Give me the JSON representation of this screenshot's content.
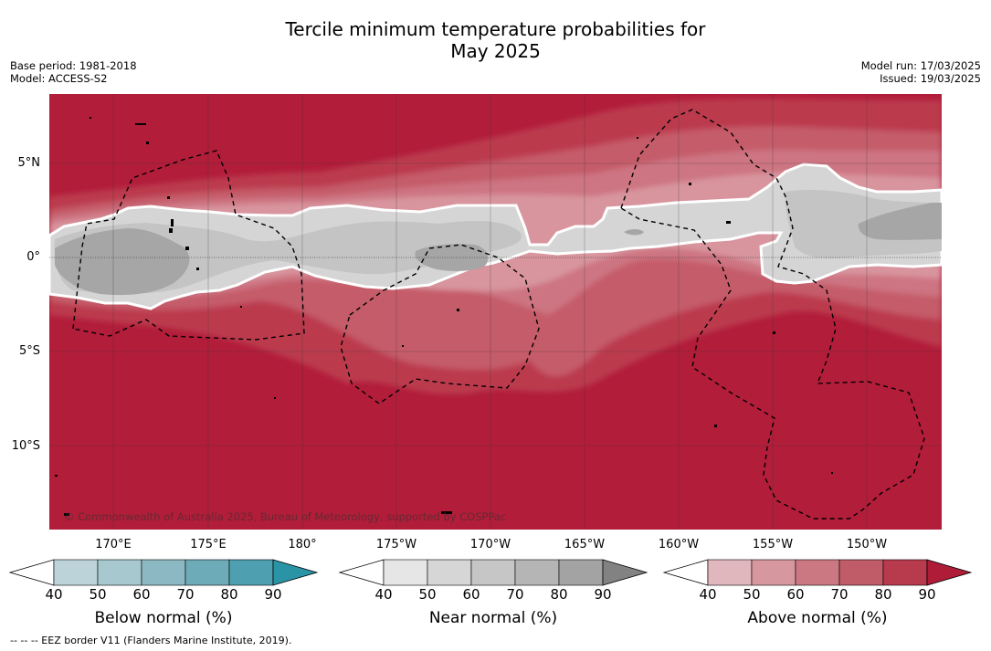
{
  "title_line1": "Tercile minimum temperature probabilities for",
  "title_line2": "May 2025",
  "meta": {
    "base_period": "Base period: 1981-2018",
    "model": "Model: ACCESS-S2",
    "model_run": "Model run: 17/03/2025",
    "issued": "Issued: 19/03/2025"
  },
  "map": {
    "lon_labels": [
      "170°E",
      "175°E",
      "180°",
      "175°W",
      "170°W",
      "165°W",
      "160°W",
      "155°W",
      "150°W"
    ],
    "lat_labels": [
      "5°N",
      "0°",
      "5°S",
      "10°S"
    ],
    "copyright": "© Commonwealth of Australia 2025, Bureau of Meteorology, supported by COSPPac"
  },
  "colorbars": [
    {
      "title": "Below normal (%)",
      "ticks": [
        "40",
        "50",
        "60",
        "70",
        "80",
        "90"
      ],
      "colors": [
        "#bcd3da",
        "#a6c8ce",
        "#8bb8c2",
        "#6eabb8",
        "#4ea0b0",
        "#2b93a6"
      ]
    },
    {
      "title": "Near normal (%)",
      "ticks": [
        "40",
        "50",
        "60",
        "70",
        "80",
        "90"
      ],
      "colors": [
        "#e6e6e6",
        "#d6d6d6",
        "#c6c6c6",
        "#b5b5b5",
        "#a3a3a3",
        "#828282"
      ]
    },
    {
      "title": "Above normal (%)",
      "ticks": [
        "40",
        "50",
        "60",
        "70",
        "80",
        "90"
      ],
      "colors": [
        "#e0b7bd",
        "#d6979f",
        "#cb7882",
        "#c05b68",
        "#b73a4d",
        "#ae1c38"
      ]
    }
  ],
  "eez_note": "--  --  -- EEZ border V11 (Flanders Marine Institute, 2019).",
  "colors": {
    "above_90": "#b21d3a",
    "above_80": "#bb3a4e",
    "above_70": "#c55b69",
    "above_60": "#cd7582",
    "above_50": "#d8959e",
    "near_50": "#d5d5d5",
    "near_60": "#c6c6c6",
    "near_70": "#a6a6a6"
  }
}
